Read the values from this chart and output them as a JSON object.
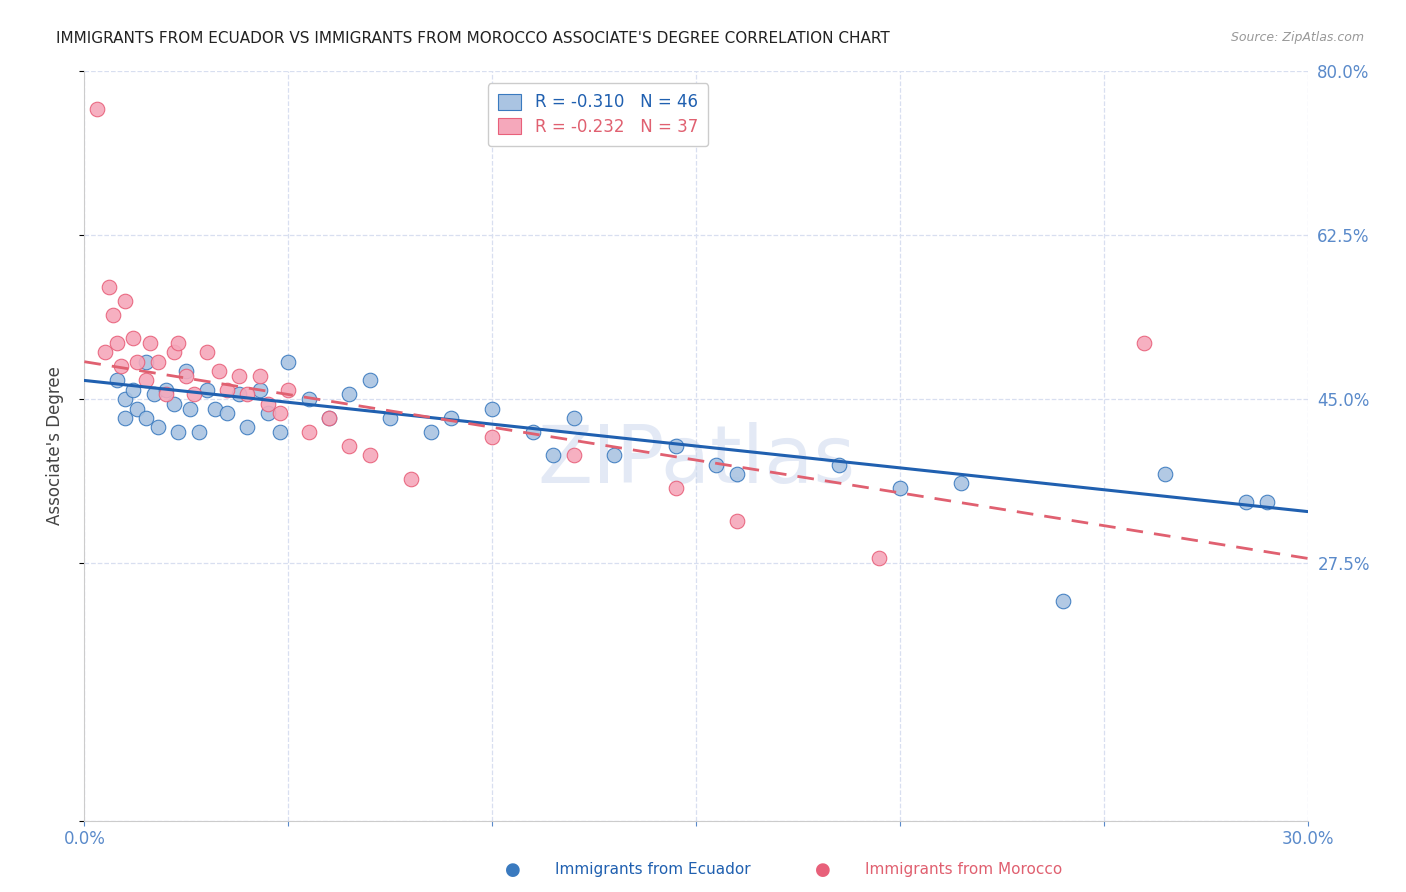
{
  "title": "IMMIGRANTS FROM ECUADOR VS IMMIGRANTS FROM MOROCCO ASSOCIATE'S DEGREE CORRELATION CHART",
  "source_text": "Source: ZipAtlas.com",
  "ylabel": "Associate's Degree",
  "xlim": [
    0.0,
    0.3
  ],
  "ylim": [
    0.0,
    0.8
  ],
  "xticks": [
    0.0,
    0.05,
    0.1,
    0.15,
    0.2,
    0.25,
    0.3
  ],
  "xticklabels": [
    "0.0%",
    "",
    "",
    "",
    "",
    "",
    "30.0%"
  ],
  "yticks": [
    0.0,
    0.275,
    0.45,
    0.625,
    0.8
  ],
  "right_yticklabels": [
    "",
    "27.5%",
    "45.0%",
    "62.5%",
    "80.0%"
  ],
  "ecuador_color": "#aac4e2",
  "morocco_color": "#f5a8bb",
  "ecuador_edge_color": "#3a7abf",
  "morocco_edge_color": "#e8607a",
  "ecuador_line_color": "#2060b0",
  "morocco_line_color": "#e06070",
  "ecuador_R": -0.31,
  "ecuador_N": 46,
  "morocco_R": -0.232,
  "morocco_N": 37,
  "watermark_text": "ZIPatlas",
  "ecuador_scatter_x": [
    0.008,
    0.01,
    0.01,
    0.012,
    0.013,
    0.015,
    0.015,
    0.017,
    0.018,
    0.02,
    0.022,
    0.023,
    0.025,
    0.026,
    0.028,
    0.03,
    0.032,
    0.035,
    0.038,
    0.04,
    0.043,
    0.045,
    0.048,
    0.05,
    0.055,
    0.06,
    0.065,
    0.07,
    0.075,
    0.085,
    0.09,
    0.1,
    0.11,
    0.115,
    0.12,
    0.13,
    0.145,
    0.155,
    0.16,
    0.185,
    0.2,
    0.215,
    0.24,
    0.265,
    0.285,
    0.29
  ],
  "ecuador_scatter_y": [
    0.47,
    0.45,
    0.43,
    0.46,
    0.44,
    0.49,
    0.43,
    0.455,
    0.42,
    0.46,
    0.445,
    0.415,
    0.48,
    0.44,
    0.415,
    0.46,
    0.44,
    0.435,
    0.455,
    0.42,
    0.46,
    0.435,
    0.415,
    0.49,
    0.45,
    0.43,
    0.455,
    0.47,
    0.43,
    0.415,
    0.43,
    0.44,
    0.415,
    0.39,
    0.43,
    0.39,
    0.4,
    0.38,
    0.37,
    0.38,
    0.355,
    0.36,
    0.235,
    0.37,
    0.34,
    0.34
  ],
  "morocco_scatter_x": [
    0.003,
    0.005,
    0.006,
    0.007,
    0.008,
    0.009,
    0.01,
    0.012,
    0.013,
    0.015,
    0.016,
    0.018,
    0.02,
    0.022,
    0.023,
    0.025,
    0.027,
    0.03,
    0.033,
    0.035,
    0.038,
    0.04,
    0.043,
    0.045,
    0.048,
    0.05,
    0.055,
    0.06,
    0.065,
    0.07,
    0.08,
    0.1,
    0.12,
    0.145,
    0.16,
    0.195,
    0.26
  ],
  "morocco_scatter_y": [
    0.76,
    0.5,
    0.57,
    0.54,
    0.51,
    0.485,
    0.555,
    0.515,
    0.49,
    0.47,
    0.51,
    0.49,
    0.455,
    0.5,
    0.51,
    0.475,
    0.455,
    0.5,
    0.48,
    0.46,
    0.475,
    0.455,
    0.475,
    0.445,
    0.435,
    0.46,
    0.415,
    0.43,
    0.4,
    0.39,
    0.365,
    0.41,
    0.39,
    0.355,
    0.32,
    0.28,
    0.51
  ],
  "grid_color": "#d8dff0",
  "axis_color": "#5a8aca",
  "tick_color": "#5a8aca",
  "tick_fontsize": 12,
  "ylabel_fontsize": 12,
  "title_fontsize": 11,
  "legend_fontsize": 12,
  "background_color": "#ffffff"
}
